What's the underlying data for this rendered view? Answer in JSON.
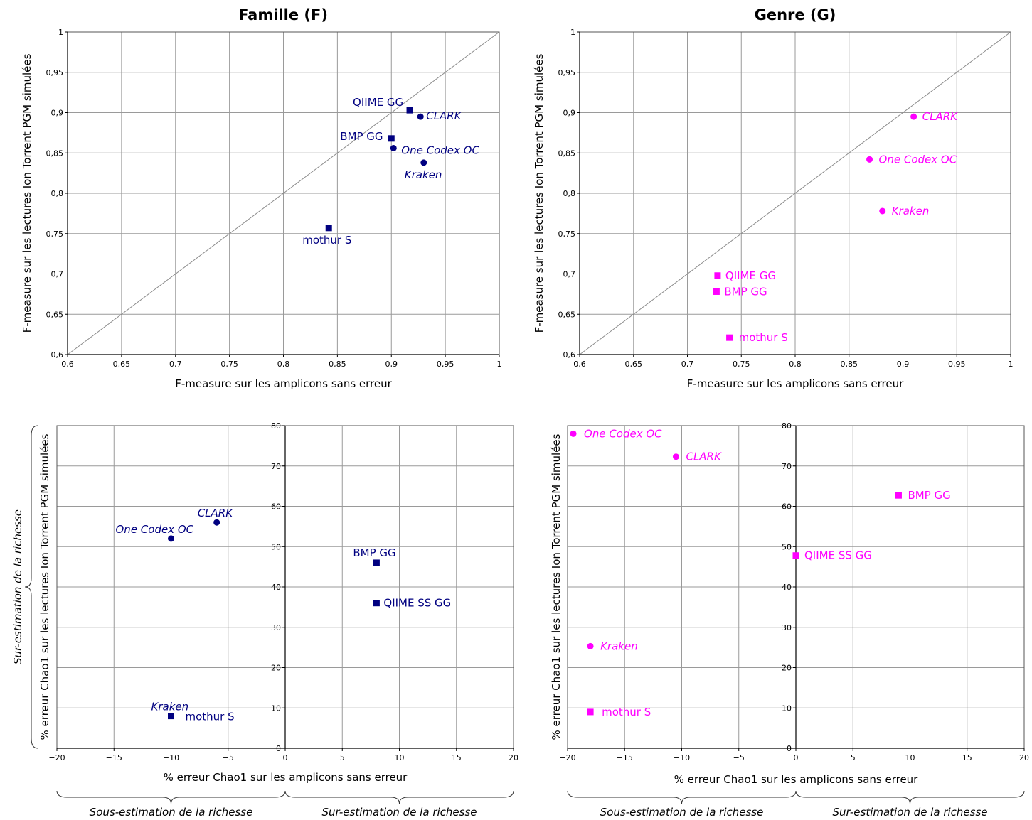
{
  "colors": {
    "famille": "#000080",
    "genre": "#ff00ff"
  },
  "chart_data": [
    {
      "type": "scatter",
      "title": "Famille (F)",
      "xlabel": "F-measure sur les amplicons sans erreur",
      "ylabel": "F-measure sur les lectures Ion Torrent PGM simulées",
      "xlim": [
        0.6,
        1
      ],
      "ylim": [
        0.6,
        1
      ],
      "xticks": [
        "0,6",
        "0,65",
        "0,7",
        "0,75",
        "0,8",
        "0,85",
        "0,9",
        "0,95",
        "1"
      ],
      "yticks": [
        "0,6",
        "0,65",
        "0,7",
        "0,75",
        "0,8",
        "0,85",
        "0,9",
        "0,95",
        "1"
      ],
      "diagonal": true,
      "grid": true,
      "points": [
        {
          "label": "QIIME GG",
          "x": 0.917,
          "y": 0.903,
          "marker": "square",
          "italic": false
        },
        {
          "label": "CLARK",
          "x": 0.927,
          "y": 0.895,
          "marker": "circle",
          "italic": true
        },
        {
          "label": "BMP GG",
          "x": 0.9,
          "y": 0.868,
          "marker": "square",
          "italic": false
        },
        {
          "label": "One Codex OC",
          "x": 0.902,
          "y": 0.856,
          "marker": "circle",
          "italic": true
        },
        {
          "label": "Kraken",
          "x": 0.93,
          "y": 0.838,
          "marker": "circle",
          "italic": true
        },
        {
          "label": "mothur S",
          "x": 0.842,
          "y": 0.757,
          "marker": "square",
          "italic": false
        }
      ]
    },
    {
      "type": "scatter",
      "title": "Genre (G)",
      "xlabel": "F-measure sur les amplicons sans erreur",
      "ylabel": "F-measure sur les lectures Ion Torrent PGM simulées",
      "xlim": [
        0.6,
        1
      ],
      "ylim": [
        0.6,
        1
      ],
      "xticks": [
        "0,6",
        "0,65",
        "0,7",
        "0,75",
        "0,8",
        "0,85",
        "0,9",
        "0,95",
        "1"
      ],
      "yticks": [
        "0,6",
        "0,65",
        "0,7",
        "0,75",
        "0,8",
        "0,85",
        "0,9",
        "0,95",
        "1"
      ],
      "diagonal": true,
      "grid": true,
      "points": [
        {
          "label": "CLARK",
          "x": 0.91,
          "y": 0.895,
          "marker": "circle",
          "italic": true
        },
        {
          "label": "One Codex OC",
          "x": 0.869,
          "y": 0.842,
          "marker": "circle",
          "italic": true
        },
        {
          "label": "Kraken",
          "x": 0.881,
          "y": 0.778,
          "marker": "circle",
          "italic": true
        },
        {
          "label": "QIIME GG",
          "x": 0.728,
          "y": 0.698,
          "marker": "square",
          "italic": false
        },
        {
          "label": "BMP GG",
          "x": 0.727,
          "y": 0.678,
          "marker": "square",
          "italic": false
        },
        {
          "label": "mothur S",
          "x": 0.739,
          "y": 0.621,
          "marker": "square",
          "italic": false
        }
      ]
    },
    {
      "type": "scatter",
      "xlabel": "% erreur Chao1 sur les amplicons sans erreur",
      "ylabel": "% erreur Chao1 sur les lectures Ion Torrent PGM simulées",
      "xlim": [
        -20,
        20
      ],
      "ylim": [
        0,
        80
      ],
      "xticks": [
        "−20",
        "−15",
        "−10",
        "−5",
        "0",
        "5",
        "10",
        "15",
        "20"
      ],
      "yticks": [
        "0",
        "10",
        "20",
        "30",
        "40",
        "50",
        "60",
        "70",
        "80"
      ],
      "grid": true,
      "points": [
        {
          "label": "CLARK",
          "x": -6,
          "y": 56,
          "marker": "circle",
          "italic": true
        },
        {
          "label": "One Codex OC",
          "x": -10,
          "y": 52,
          "marker": "circle",
          "italic": true
        },
        {
          "label": "Kraken",
          "x": -10,
          "y": 8,
          "marker": "circle",
          "italic": true
        },
        {
          "label": "mothur S",
          "x": -10,
          "y": 8,
          "marker": "square",
          "italic": false
        },
        {
          "label": "BMP GG",
          "x": 8,
          "y": 46,
          "marker": "square",
          "italic": false
        },
        {
          "label": "QIIME SS GG",
          "x": 8,
          "y": 36,
          "marker": "square",
          "italic": false
        }
      ],
      "braces": [
        "Sous-estimation de la richesse",
        "Sur-estimation de la richesse"
      ],
      "yBrace": "Sur-estimation de la richesse"
    },
    {
      "type": "scatter",
      "xlabel": "% erreur Chao1 sur les amplicons sans erreur",
      "ylabel": "% erreur Chao1 sur les lectures Ion Torrent PGM simulées",
      "xlim": [
        -20,
        20
      ],
      "ylim": [
        0,
        80
      ],
      "xticks": [
        "−20",
        "−15",
        "−10",
        "−5",
        "0",
        "5",
        "10",
        "15",
        "20"
      ],
      "yticks": [
        "0",
        "10",
        "20",
        "30",
        "40",
        "50",
        "60",
        "70",
        "80"
      ],
      "grid": true,
      "points": [
        {
          "label": "One Codex OC",
          "x": -19.5,
          "y": 78,
          "marker": "circle",
          "italic": true
        },
        {
          "label": "CLARK",
          "x": -10.5,
          "y": 72.3,
          "marker": "circle",
          "italic": true
        },
        {
          "label": "Kraken",
          "x": -18,
          "y": 25.3,
          "marker": "circle",
          "italic": true
        },
        {
          "label": "mothur S",
          "x": -18,
          "y": 9,
          "marker": "square",
          "italic": false
        },
        {
          "label": "BMP GG",
          "x": 9,
          "y": 62.7,
          "marker": "square",
          "italic": false
        },
        {
          "label": "QIIME SS GG",
          "x": 0,
          "y": 47.8,
          "marker": "square",
          "italic": false
        }
      ],
      "braces": [
        "Sous-estimation de la richesse",
        "Sur-estimation de la richesse"
      ]
    }
  ]
}
